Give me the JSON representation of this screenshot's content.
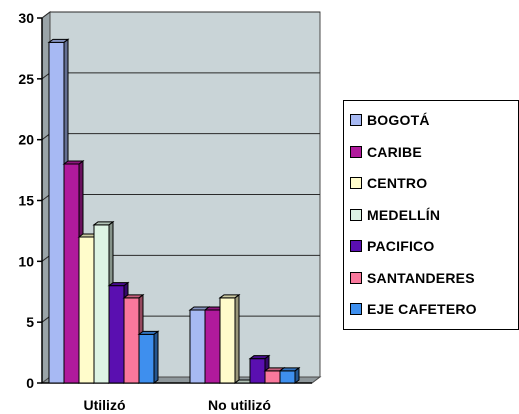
{
  "chart_data": {
    "type": "bar",
    "style": "3d-clustered-column",
    "categories": [
      "Utilizó",
      "No utilizó"
    ],
    "series": [
      {
        "name": "BOGOTÁ",
        "values": [
          28,
          6
        ],
        "color": "#A7B9F3"
      },
      {
        "name": "CARIBE",
        "values": [
          18,
          6
        ],
        "color": "#B01A9C"
      },
      {
        "name": "CENTRO",
        "values": [
          12,
          7
        ],
        "color": "#FFFCCB"
      },
      {
        "name": "MEDELLÍN",
        "values": [
          13,
          0
        ],
        "color": "#DDF3E4"
      },
      {
        "name": "PACIFICO",
        "values": [
          8,
          2
        ],
        "color": "#5A0FB0"
      },
      {
        "name": "SANTANDERES",
        "values": [
          7,
          1
        ],
        "color": "#F9789C"
      },
      {
        "name": "EJE CAFETERO",
        "values": [
          4,
          1
        ],
        "color": "#3E8FEE"
      }
    ],
    "ylim": [
      0,
      30
    ],
    "yticks": [
      "0",
      "5",
      "10",
      "15",
      "20",
      "25",
      "30"
    ],
    "grid": true,
    "legend_position": "right",
    "plot_background": "#C9D4D7"
  }
}
